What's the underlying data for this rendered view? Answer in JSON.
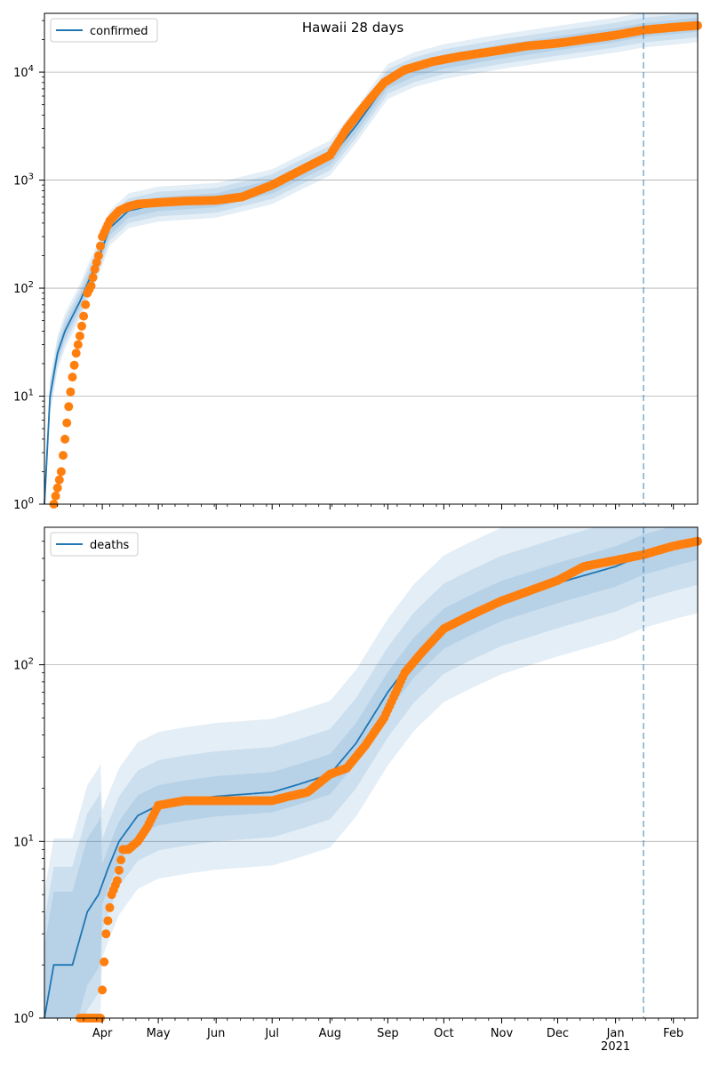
{
  "figure": {
    "title": "Hawaii 28 days"
  },
  "colors": {
    "band": "#1f77b4",
    "line": "#1f77b4",
    "dots": "#ff7f0e",
    "grid": "#b0b0b0",
    "vline": "#1f77b4"
  },
  "x_axis": {
    "month_labels": [
      "Apr",
      "May",
      "Jun",
      "Jul",
      "Aug",
      "Sep",
      "Oct",
      "Nov",
      "Dec",
      "Jan",
      "Feb"
    ],
    "year_label": "2021"
  },
  "chart_data": [
    {
      "type": "line",
      "legend": "confirmed",
      "legend_loc": "upper left",
      "yscale": "log",
      "ylim": [
        1,
        35000
      ],
      "y_ticks": [
        "10^0",
        "10^1",
        "10^2",
        "10^3",
        "10^4"
      ],
      "grid": "y-major",
      "forecast_line_date": "2021-01-16",
      "observed": {
        "dates": [
          "2020-03-06",
          "2020-03-10",
          "2020-03-12",
          "2020-03-14",
          "2020-03-16",
          "2020-03-18",
          "2020-03-20",
          "2020-03-22",
          "2020-03-24",
          "2020-03-26",
          "2020-03-28",
          "2020-03-30",
          "2020-04-01",
          "2020-04-05",
          "2020-04-10",
          "2020-04-15",
          "2020-04-20",
          "2020-05-01",
          "2020-05-15",
          "2020-06-01",
          "2020-06-15",
          "2020-07-01",
          "2020-07-15",
          "2020-08-01",
          "2020-08-10",
          "2020-08-20",
          "2020-08-30",
          "2020-09-10",
          "2020-09-25",
          "2020-10-10",
          "2020-11-01",
          "2020-11-15",
          "2020-12-01",
          "2020-12-15",
          "2021-01-01",
          "2021-01-16",
          "2021-02-01",
          "2021-02-14"
        ],
        "values": [
          1,
          2,
          4,
          8,
          15,
          25,
          36,
          55,
          90,
          105,
          150,
          200,
          300,
          420,
          520,
          570,
          600,
          620,
          640,
          650,
          700,
          900,
          1200,
          1700,
          3000,
          5000,
          8000,
          10500,
          12500,
          14000,
          16000,
          17500,
          18500,
          20000,
          22000,
          24500,
          26000,
          27000
        ]
      },
      "model": {
        "dates": [
          "2020-03-01",
          "2020-03-04",
          "2020-03-08",
          "2020-03-12",
          "2020-03-16",
          "2020-03-20",
          "2020-03-25",
          "2020-03-30",
          "2020-04-05",
          "2020-04-15",
          "2020-05-01",
          "2020-06-01",
          "2020-07-01",
          "2020-07-15",
          "2020-08-01",
          "2020-08-15",
          "2020-09-01",
          "2020-09-15",
          "2020-10-01",
          "2020-11-01",
          "2020-12-01",
          "2021-01-01",
          "2021-01-16",
          "2021-02-01",
          "2021-02-14"
        ],
        "values": [
          1,
          10,
          25,
          40,
          55,
          75,
          120,
          190,
          360,
          520,
          600,
          650,
          870,
          1150,
          1600,
          3200,
          8200,
          10500,
          12500,
          15500,
          18500,
          22000,
          24500,
          26000,
          27500
        ]
      }
    },
    {
      "type": "line",
      "legend": "deaths",
      "legend_loc": "upper left",
      "yscale": "log",
      "ylim": [
        1,
        600
      ],
      "y_ticks": [
        "10^0",
        "10^1",
        "10^2"
      ],
      "grid": "y-major",
      "forecast_line_date": "2021-01-16",
      "observed": {
        "dates": [
          "2020-03-20",
          "2020-03-31",
          "2020-04-03",
          "2020-04-06",
          "2020-04-09",
          "2020-04-12",
          "2020-04-15",
          "2020-04-20",
          "2020-04-25",
          "2020-05-01",
          "2020-05-15",
          "2020-06-01",
          "2020-06-15",
          "2020-07-01",
          "2020-07-10",
          "2020-07-20",
          "2020-08-01",
          "2020-08-10",
          "2020-08-20",
          "2020-08-30",
          "2020-09-10",
          "2020-09-20",
          "2020-10-01",
          "2020-10-15",
          "2020-11-01",
          "2020-11-15",
          "2020-12-01",
          "2020-12-15",
          "2021-01-01",
          "2021-01-16",
          "2021-02-01",
          "2021-02-14"
        ],
        "values": [
          1,
          1,
          3,
          5,
          6,
          9,
          9,
          10,
          12,
          16,
          17,
          17,
          17,
          17,
          18,
          19,
          24,
          26,
          35,
          50,
          90,
          120,
          160,
          190,
          230,
          260,
          300,
          360,
          390,
          420,
          470,
          500
        ]
      },
      "model": {
        "dates": [
          "2020-03-01",
          "2020-03-06",
          "2020-03-16",
          "2020-03-24",
          "2020-03-30",
          "2020-04-04",
          "2020-04-10",
          "2020-04-20",
          "2020-05-01",
          "2020-05-15",
          "2020-06-01",
          "2020-07-01",
          "2020-07-15",
          "2020-08-01",
          "2020-08-15",
          "2020-09-01",
          "2020-09-15",
          "2020-10-01",
          "2020-10-15",
          "2020-11-01",
          "2020-12-01",
          "2021-01-01",
          "2021-01-16",
          "2021-02-01",
          "2021-02-14"
        ],
        "values": [
          1,
          2,
          2,
          4,
          5,
          7,
          10,
          14,
          16,
          17,
          18,
          19,
          21,
          24,
          36,
          70,
          110,
          160,
          190,
          230,
          290,
          360,
          420,
          470,
          510
        ]
      }
    }
  ]
}
